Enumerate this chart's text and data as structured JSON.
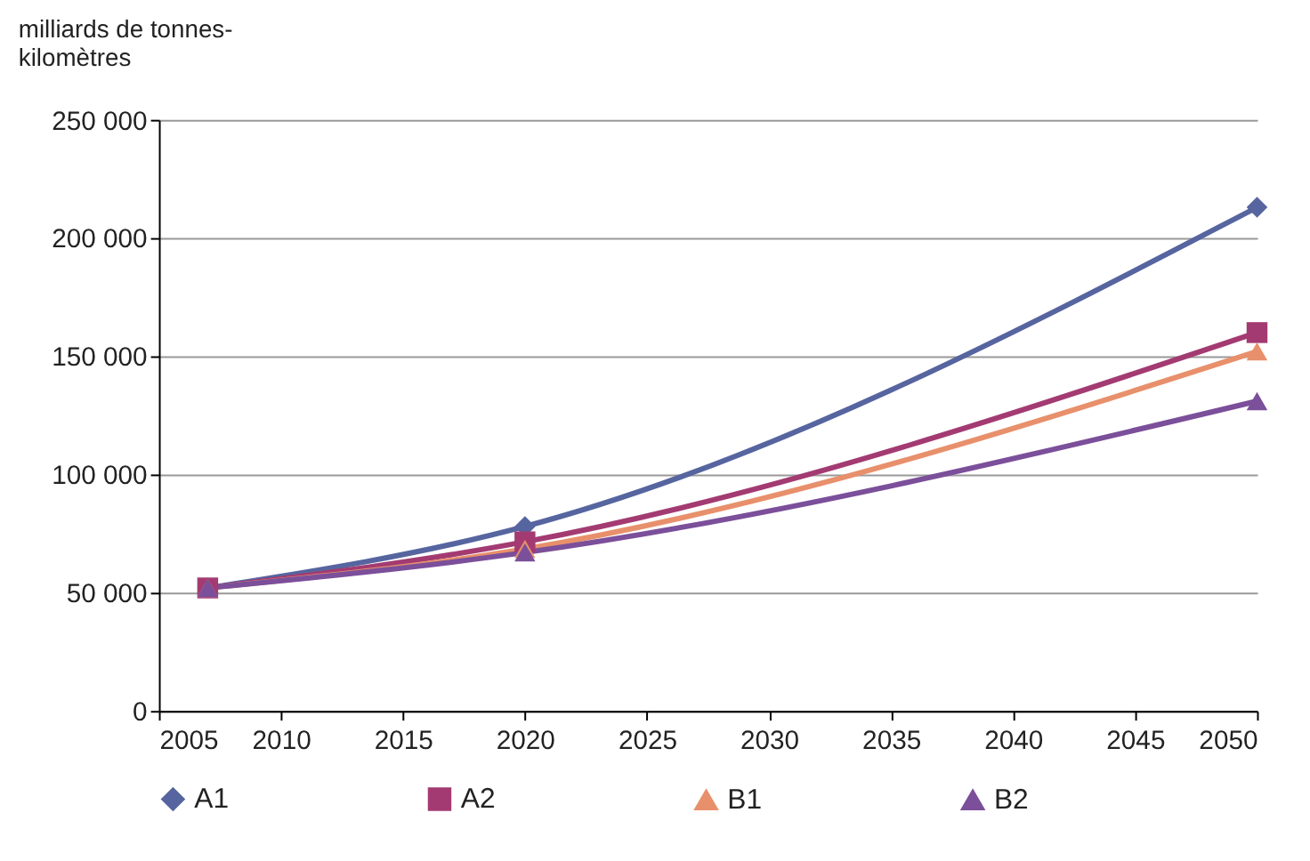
{
  "chart_data": {
    "type": "line",
    "ylabel": "milliards de tonnes-kilomètres",
    "x": [
      2007,
      2020,
      2050
    ],
    "series": [
      {
        "name": "A1",
        "color": "#56659f",
        "marker": "diamond",
        "values": [
          52000,
          78000,
          213000
        ]
      },
      {
        "name": "A2",
        "color": "#a33b72",
        "marker": "square",
        "values": [
          52000,
          71500,
          160000
        ]
      },
      {
        "name": "B1",
        "color": "#e8906c",
        "marker": "triangle",
        "values": [
          52000,
          68500,
          152000
        ]
      },
      {
        "name": "B2",
        "color": "#7b4f9a",
        "marker": "triangle",
        "values": [
          52000,
          67000,
          131000
        ]
      }
    ],
    "xlim": [
      2005,
      2050
    ],
    "xticks": [
      2005,
      2010,
      2015,
      2020,
      2025,
      2030,
      2035,
      2040,
      2045,
      2050
    ],
    "ylim": [
      0,
      250000
    ],
    "yticks": [
      0,
      {
        "value": 50000,
        "label": "50 000"
      },
      {
        "value": 100000,
        "label": "100 000"
      },
      {
        "value": 150000,
        "label": "150 000"
      },
      {
        "value": 200000,
        "label": "200 000"
      },
      {
        "value": 250000,
        "label": "250 000"
      }
    ],
    "grid": "y",
    "legend": "bottom",
    "line_style": "solid"
  }
}
